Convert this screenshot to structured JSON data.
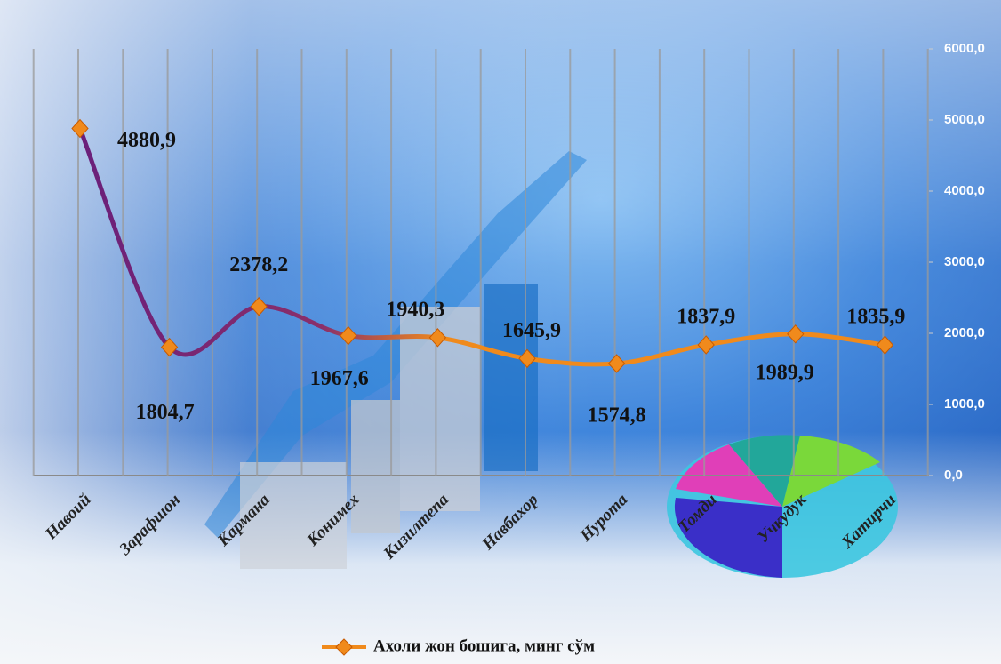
{
  "chart_data": {
    "type": "line",
    "categories": [
      "Навоий",
      "Зарафшон",
      "Кармана",
      "Конимех",
      "Кизилтепа",
      "Навбахор",
      "Нурота",
      "Томди",
      "Учкудук",
      "Хатирчи"
    ],
    "series": [
      {
        "name": "Ахоли жон бошига, минг сўм",
        "color": "#f08a1c",
        "axis": "y2",
        "values": [
          4880.9,
          1804.7,
          2378.2,
          1967.6,
          1940.3,
          1645.9,
          1574.8,
          1837.9,
          1989.9,
          1835.9
        ],
        "value_labels": [
          "4880,9",
          "1804,7",
          "2378,2",
          "1967,6",
          "1940,3",
          "1645,9",
          "1574,8",
          "1837,9",
          "1989,9",
          "1835,9"
        ]
      }
    ],
    "y2lim": [
      0,
      6000
    ],
    "y2ticks": [
      {
        "value": 0,
        "label": "0,0"
      },
      {
        "value": 1000,
        "label": "1000,0"
      },
      {
        "value": 2000,
        "label": "2000,0"
      },
      {
        "value": 3000,
        "label": "3000,0"
      },
      {
        "value": 4000,
        "label": "4000,0"
      },
      {
        "value": 5000,
        "label": "5000,0"
      },
      {
        "value": 6000,
        "label": "6000,0"
      }
    ],
    "legend": "bottom"
  }
}
